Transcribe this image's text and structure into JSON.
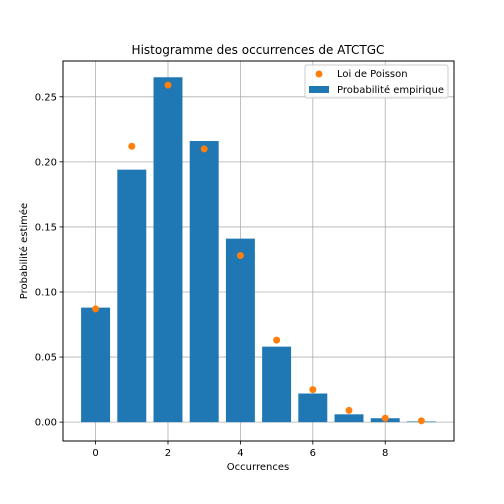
{
  "chart_data": {
    "type": "bar",
    "title": "Histogramme des occurrences de ATCTGC",
    "xlabel": "Occurrences",
    "ylabel": "Probabilité estimée",
    "xlim": [
      -0.9,
      9.9
    ],
    "ylim": [
      -0.0145,
      0.2775
    ],
    "xticks": [
      0,
      2,
      4,
      6,
      8
    ],
    "yticks": [
      0.0,
      0.05,
      0.1,
      0.15,
      0.2,
      0.25
    ],
    "ytick_labels": [
      "0.00",
      "0.05",
      "0.10",
      "0.15",
      "0.20",
      "0.25"
    ],
    "grid": true,
    "legend_position": "top-right",
    "x": [
      0,
      1,
      2,
      3,
      4,
      5,
      6,
      7,
      8,
      9
    ],
    "series": [
      {
        "name": "Probabilité empirique",
        "kind": "bar",
        "color": "#1f77b4",
        "values": [
          0.088,
          0.194,
          0.265,
          0.216,
          0.141,
          0.058,
          0.022,
          0.006,
          0.003,
          0.0005
        ]
      },
      {
        "name": "Loi de Poisson",
        "kind": "scatter",
        "color": "#ff7f0e",
        "values": [
          0.087,
          0.212,
          0.259,
          0.21,
          0.128,
          0.063,
          0.025,
          0.009,
          0.003,
          0.001
        ]
      }
    ]
  }
}
